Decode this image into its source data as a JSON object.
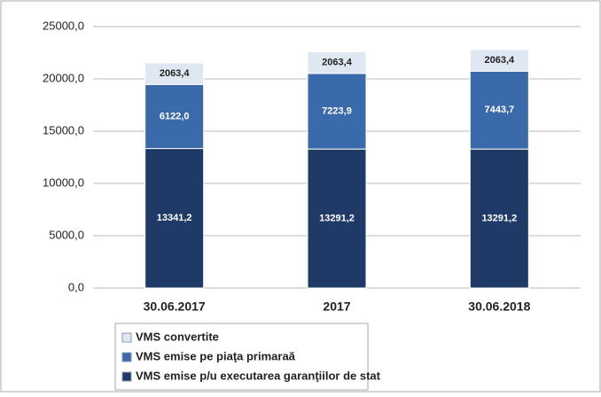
{
  "chart_data": {
    "type": "stacked_bar",
    "categories": [
      "30.06.2017",
      "2017",
      "30.06.2018"
    ],
    "series": [
      {
        "name": "VMS emise p/u executarea garanţiilor de stat",
        "color": "#1f3a66",
        "values": [
          13341.2,
          13291.2,
          13291.2
        ],
        "value_labels": [
          "13341,2",
          "13291,2",
          "13291,2"
        ]
      },
      {
        "name": "VMS emise pe piaţa primaraă",
        "color": "#3a6aaa",
        "values": [
          6122.0,
          7223.9,
          7443.7
        ],
        "value_labels": [
          "6122,0",
          "7223,9",
          "7443,7"
        ]
      },
      {
        "name": "VMS convertite",
        "color": "#dfe7f2",
        "values": [
          2063.4,
          2063.4,
          2063.4
        ],
        "value_labels": [
          "2063,4",
          "2063,4",
          "2063,4"
        ]
      }
    ],
    "ylim": [
      0,
      25000
    ],
    "yticks": [
      {
        "value": 0,
        "label": "0,0"
      },
      {
        "value": 5000,
        "label": "5000,0"
      },
      {
        "value": 10000,
        "label": "10000,0"
      },
      {
        "value": 15000,
        "label": "15000,0"
      },
      {
        "value": 20000,
        "label": "20000,0"
      },
      {
        "value": 25000,
        "label": "25000,0"
      }
    ],
    "grid": true
  }
}
